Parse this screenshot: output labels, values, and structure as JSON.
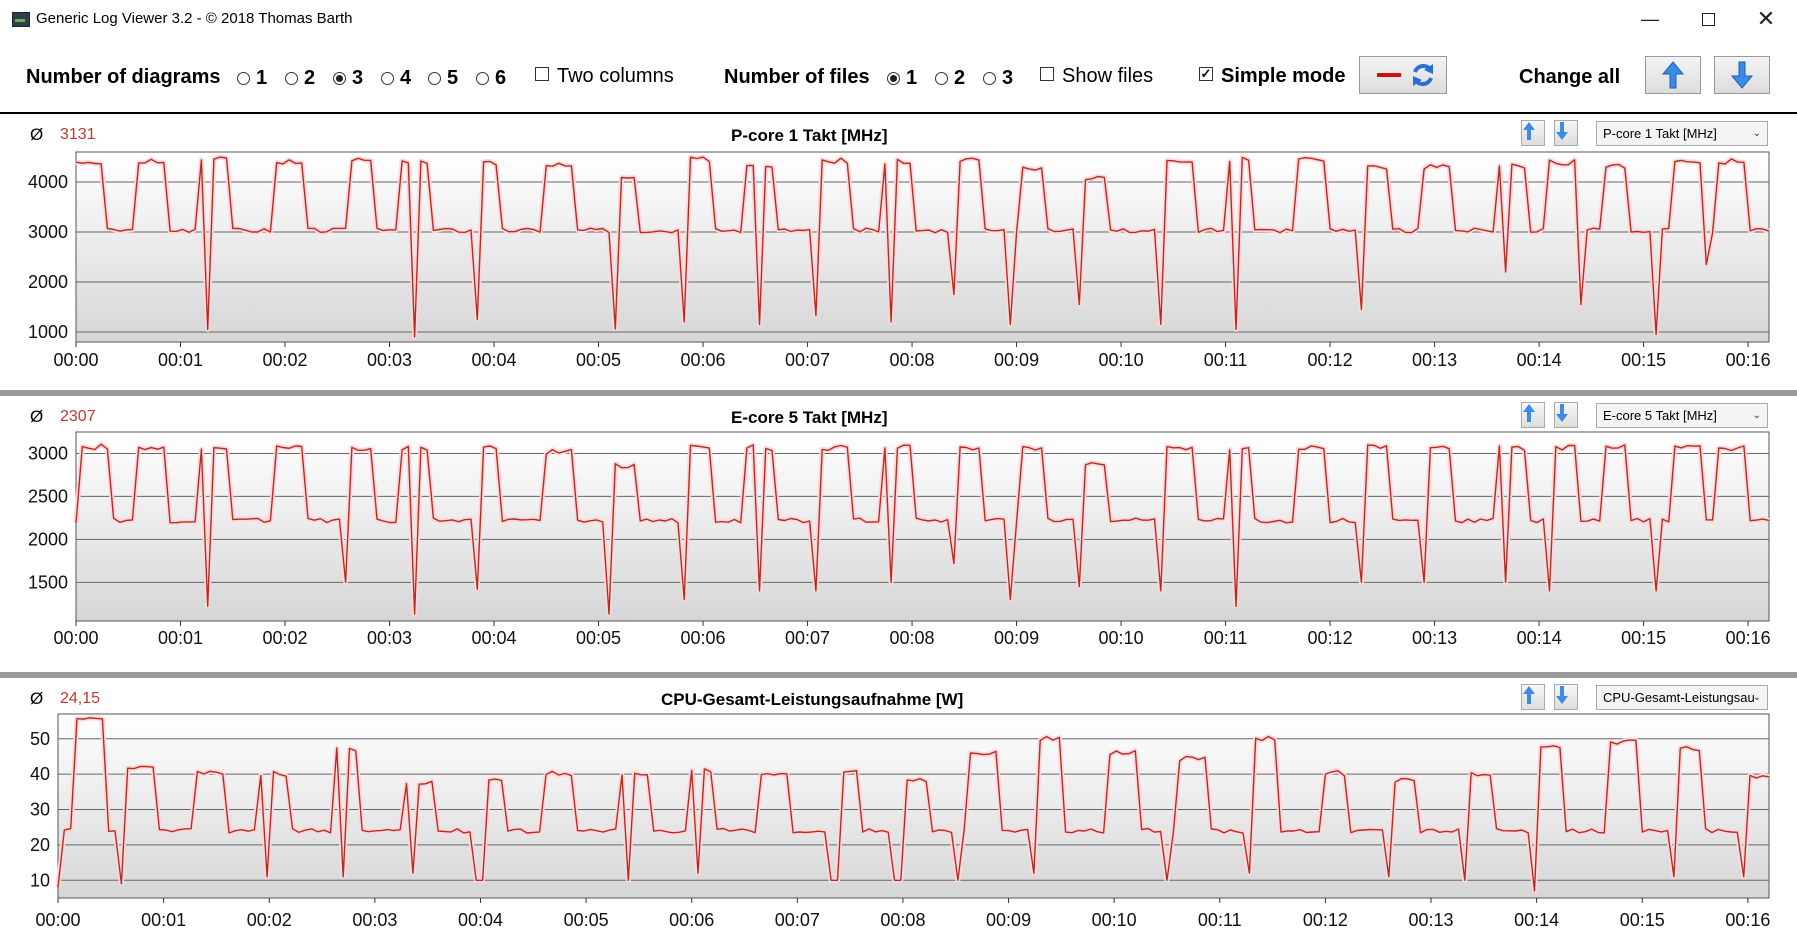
{
  "window": {
    "title": "Generic Log Viewer 3.2 - © 2018 Thomas Barth"
  },
  "toolbar": {
    "num_diagrams_label": "Number of diagrams",
    "diagram_options": [
      "1",
      "2",
      "3",
      "4",
      "5",
      "6"
    ],
    "diagram_selected": "3",
    "two_columns_label": "Two columns",
    "num_files_label": "Number of files",
    "file_options": [
      "1",
      "2",
      "3"
    ],
    "file_selected": "1",
    "show_files_label": "Show files",
    "simple_mode_label": "Simple mode",
    "simple_mode_checked": true,
    "change_all_label": "Change all"
  },
  "colors": {
    "line": "#b03020",
    "avg": "#c0392b",
    "arrow": "#3b7de0",
    "grid": "#666666"
  },
  "panels": [
    {
      "avg_symbol": "Ø",
      "avg_value": "3131",
      "title": "P-core 1 Takt [MHz]",
      "selector": "P-core 1 Takt [MHz]"
    },
    {
      "avg_symbol": "Ø",
      "avg_value": "2307",
      "title": "E-core 5 Takt [MHz]",
      "selector": "E-core 5 Takt [MHz]"
    },
    {
      "avg_symbol": "Ø",
      "avg_value": "24,15",
      "title": "CPU-Gesamt-Leistungsaufnahme [W]",
      "selector": "CPU-Gesamt-Leistungsau"
    }
  ],
  "chart_data": [
    {
      "type": "line",
      "title": "P-core 1 Takt [MHz]",
      "yticks": [
        "1000",
        "2000",
        "3000",
        "4000"
      ],
      "ylim": [
        800,
        4600
      ],
      "xticks": [
        "00:00",
        "00:01",
        "00:02",
        "00:03",
        "00:04",
        "00:05",
        "00:06",
        "00:07",
        "00:08",
        "00:09",
        "00:10",
        "00:11",
        "00:12",
        "00:13",
        "00:14",
        "00:15",
        "00:16"
      ],
      "xlim_min": [
        0,
        16.2
      ],
      "baseline": 3030,
      "bursts": [
        [
          0.0,
          4420
        ],
        [
          0.6,
          4480
        ],
        [
          1.2,
          4500
        ],
        [
          1.9,
          4450
        ],
        [
          2.6,
          4480
        ],
        [
          3.1,
          4450
        ],
        [
          3.8,
          4440
        ],
        [
          4.5,
          4400
        ],
        [
          5.1,
          4100
        ],
        [
          5.8,
          4500
        ],
        [
          6.4,
          4380
        ],
        [
          7.1,
          4480
        ],
        [
          7.7,
          4460
        ],
        [
          8.4,
          4480
        ],
        [
          9.0,
          4300
        ],
        [
          9.6,
          4150
        ],
        [
          10.4,
          4500
        ],
        [
          11.0,
          4500
        ],
        [
          11.7,
          4500
        ],
        [
          12.3,
          4370
        ],
        [
          12.9,
          4370
        ],
        [
          13.6,
          4390
        ],
        [
          14.1,
          4450
        ],
        [
          14.6,
          4370
        ],
        [
          15.3,
          4450
        ],
        [
          15.7,
          4470
        ]
      ],
      "dips": [
        [
          1.28,
          1050
        ],
        [
          3.22,
          900
        ],
        [
          3.85,
          1250
        ],
        [
          5.15,
          1060
        ],
        [
          5.8,
          1200
        ],
        [
          6.55,
          1150
        ],
        [
          7.1,
          1330
        ],
        [
          7.8,
          1200
        ],
        [
          8.4,
          1750
        ],
        [
          8.95,
          1150
        ],
        [
          9.6,
          1550
        ],
        [
          10.4,
          1150
        ],
        [
          11.1,
          1050
        ],
        [
          12.3,
          1450
        ],
        [
          13.7,
          2200
        ],
        [
          14.4,
          1550
        ],
        [
          15.1,
          950
        ],
        [
          15.6,
          2350
        ]
      ]
    },
    {
      "type": "line",
      "title": "E-core 5 Takt [MHz]",
      "yticks": [
        "1500",
        "2000",
        "2500",
        "3000"
      ],
      "ylim": [
        1050,
        3250
      ],
      "xticks": [
        "00:00",
        "00:01",
        "00:02",
        "00:03",
        "00:04",
        "00:05",
        "00:06",
        "00:07",
        "00:08",
        "00:09",
        "00:10",
        "00:11",
        "00:12",
        "00:13",
        "00:14",
        "00:15",
        "00:16"
      ],
      "xlim_min": [
        0,
        16.2
      ],
      "baseline": 2220,
      "bursts": [
        [
          0.05,
          3110
        ],
        [
          0.6,
          3100
        ],
        [
          1.2,
          3100
        ],
        [
          1.9,
          3100
        ],
        [
          2.6,
          3100
        ],
        [
          3.1,
          3100
        ],
        [
          3.8,
          3100
        ],
        [
          4.5,
          3050
        ],
        [
          5.1,
          2900
        ],
        [
          5.8,
          3100
        ],
        [
          6.4,
          3100
        ],
        [
          7.1,
          3100
        ],
        [
          7.7,
          3100
        ],
        [
          8.4,
          3100
        ],
        [
          9.0,
          3100
        ],
        [
          9.6,
          2900
        ],
        [
          10.4,
          3100
        ],
        [
          11.0,
          3100
        ],
        [
          11.7,
          3100
        ],
        [
          12.3,
          3100
        ],
        [
          12.9,
          3100
        ],
        [
          13.6,
          3100
        ],
        [
          14.1,
          3100
        ],
        [
          14.6,
          3100
        ],
        [
          15.3,
          3100
        ],
        [
          15.7,
          3100
        ]
      ],
      "dips": [
        [
          1.28,
          1220
        ],
        [
          2.6,
          1500
        ],
        [
          3.22,
          1130
        ],
        [
          3.85,
          1420
        ],
        [
          5.1,
          1130
        ],
        [
          5.8,
          1300
        ],
        [
          6.55,
          1400
        ],
        [
          7.1,
          1400
        ],
        [
          7.8,
          1500
        ],
        [
          8.4,
          1720
        ],
        [
          8.95,
          1300
        ],
        [
          9.6,
          1450
        ],
        [
          10.4,
          1400
        ],
        [
          11.1,
          1220
        ],
        [
          12.3,
          1500
        ],
        [
          12.9,
          1500
        ],
        [
          13.7,
          1500
        ],
        [
          14.1,
          1400
        ],
        [
          15.1,
          1400
        ]
      ]
    },
    {
      "type": "line",
      "title": "CPU-Gesamt-Leistungsaufnahme [W]",
      "yticks": [
        "10",
        "20",
        "30",
        "40",
        "50"
      ],
      "ylim": [
        5,
        57
      ],
      "xticks": [
        "00:00",
        "00:01",
        "00:02",
        "00:03",
        "00:04",
        "00:05",
        "00:06",
        "00:07",
        "00:08",
        "00:09",
        "00:10",
        "00:11",
        "00:12",
        "00:13",
        "00:14",
        "00:15",
        "00:16"
      ],
      "xlim_min": [
        0,
        16.2
      ],
      "baseline": 24,
      "bursts": [
        [
          0.15,
          57
        ],
        [
          0.65,
          43
        ],
        [
          1.3,
          41
        ],
        [
          1.9,
          41
        ],
        [
          2.6,
          48
        ],
        [
          3.3,
          38
        ],
        [
          3.95,
          39
        ],
        [
          4.6,
          41
        ],
        [
          5.3,
          41
        ],
        [
          5.95,
          42
        ],
        [
          6.65,
          41
        ],
        [
          7.3,
          42
        ],
        [
          7.95,
          39
        ],
        [
          8.6,
          47
        ],
        [
          9.25,
          51
        ],
        [
          9.95,
          47
        ],
        [
          10.6,
          45
        ],
        [
          11.3,
          51
        ],
        [
          11.95,
          41
        ],
        [
          12.6,
          39
        ],
        [
          13.3,
          41
        ],
        [
          14.0,
          49
        ],
        [
          14.7,
          50
        ],
        [
          15.3,
          48
        ],
        [
          15.95,
          40
        ]
      ],
      "dips": [
        [
          0.0,
          8
        ],
        [
          0.6,
          9
        ],
        [
          2.0,
          11
        ],
        [
          2.7,
          11
        ],
        [
          3.35,
          12
        ],
        [
          3.95,
          10
        ],
        [
          4.0,
          10
        ],
        [
          5.4,
          10
        ],
        [
          6.05,
          12
        ],
        [
          7.35,
          10
        ],
        [
          7.95,
          10
        ],
        [
          8.5,
          10
        ],
        [
          9.25,
          12
        ],
        [
          10.5,
          10
        ],
        [
          11.3,
          12
        ],
        [
          12.6,
          11
        ],
        [
          13.3,
          10
        ],
        [
          14.0,
          7
        ],
        [
          15.3,
          11
        ],
        [
          15.95,
          11
        ]
      ]
    }
  ]
}
